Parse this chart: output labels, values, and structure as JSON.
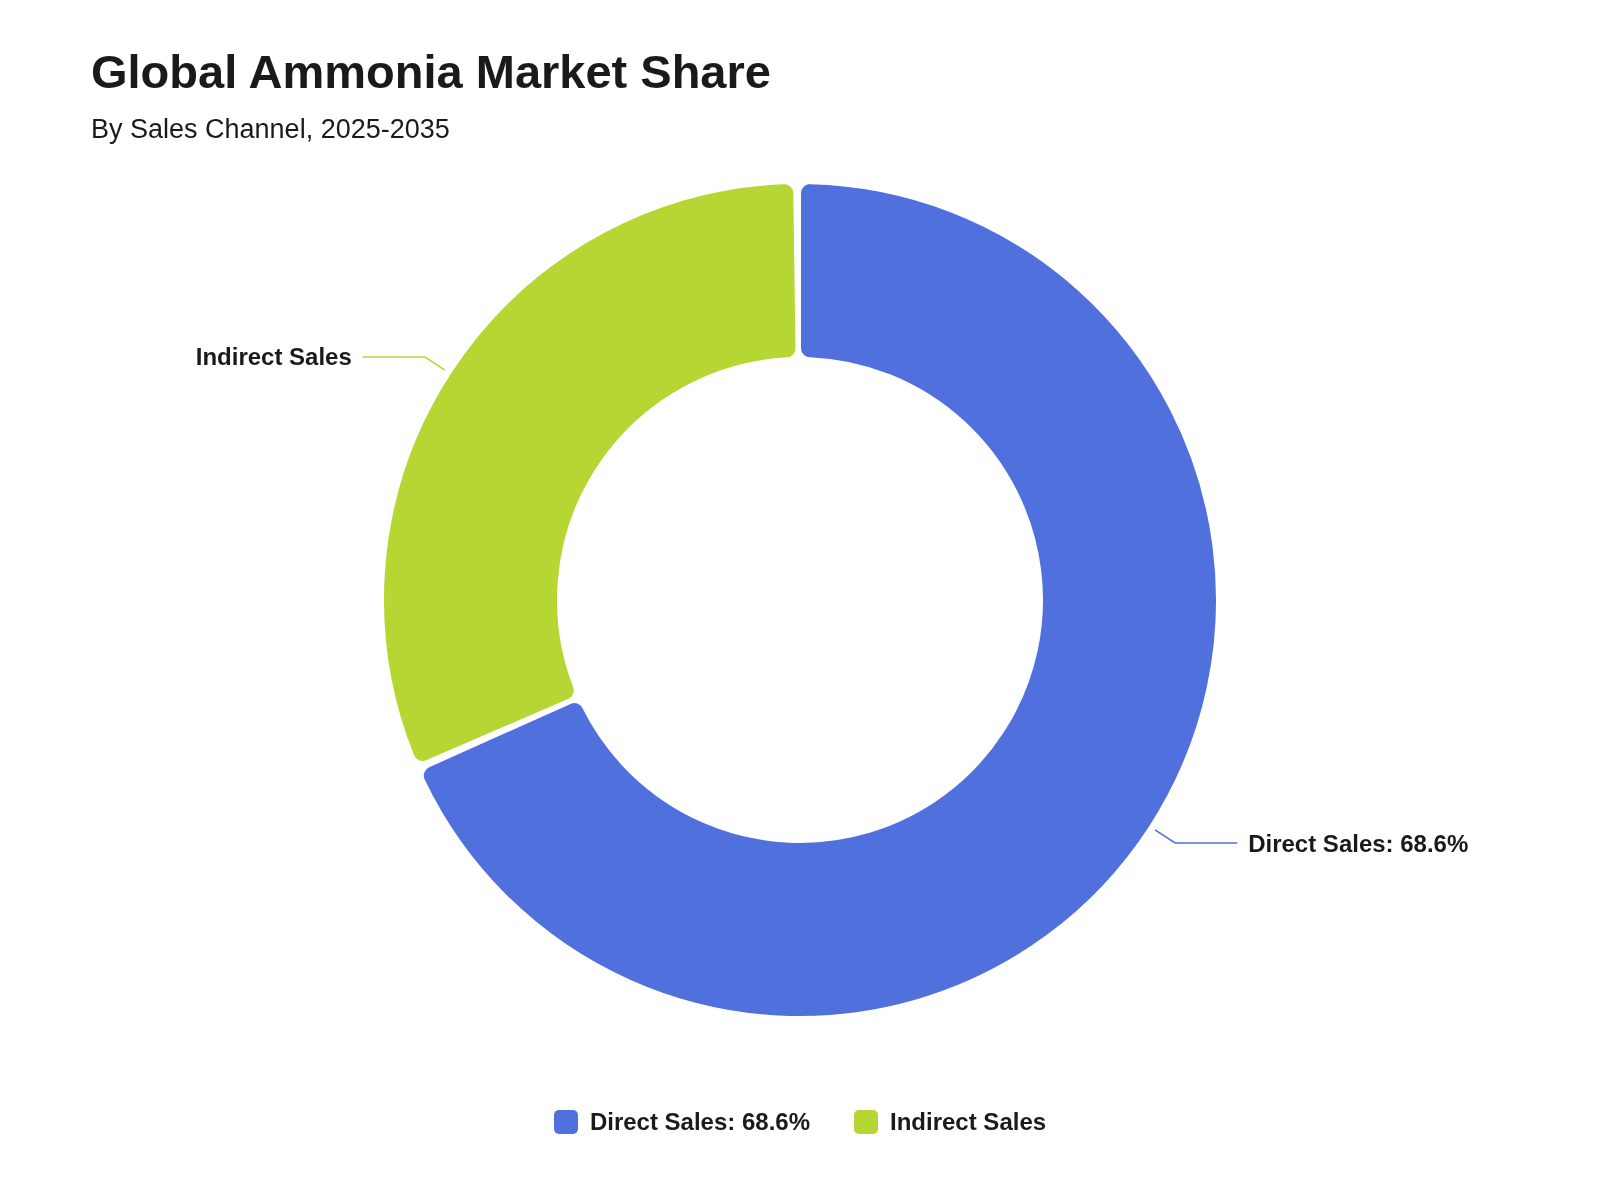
{
  "chart_data": {
    "type": "donut",
    "title": "Global Ammonia Market Share",
    "subtitle": "By Sales Channel, 2025-2035",
    "categories": [
      "Direct Sales: 68.6%",
      "Indirect Sales"
    ],
    "values": [
      68.6,
      31.4
    ],
    "colors": [
      "#5070dd",
      "#b6d634"
    ],
    "legend": "bottom"
  }
}
